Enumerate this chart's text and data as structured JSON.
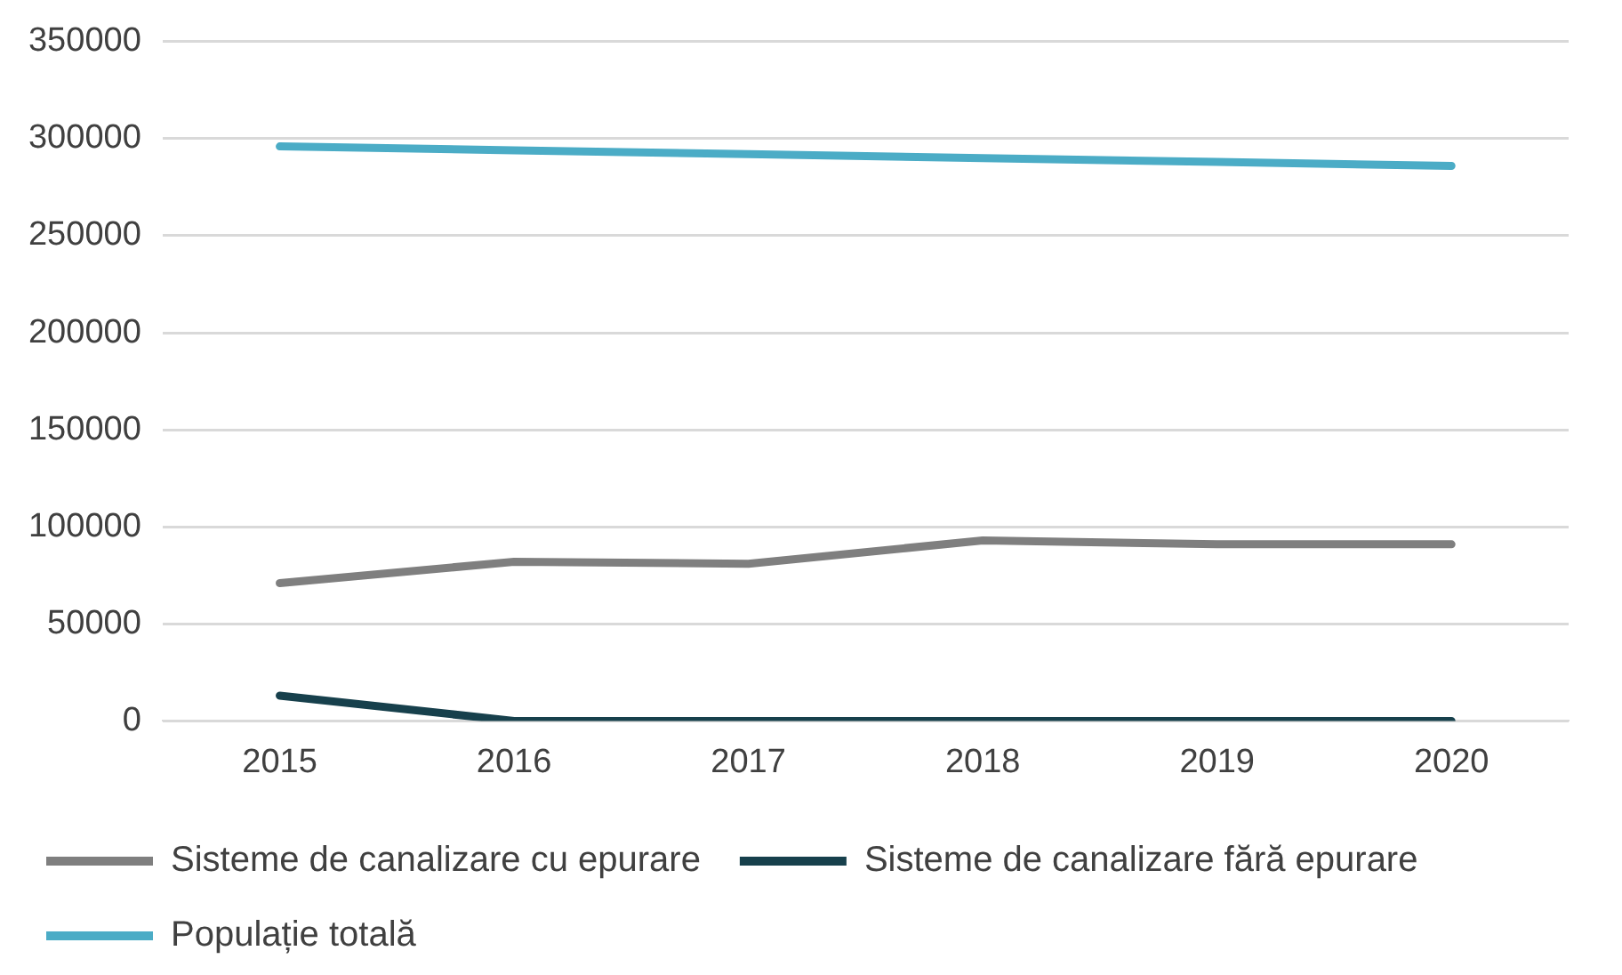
{
  "chart_data": {
    "type": "line",
    "categories": [
      "2015",
      "2016",
      "2017",
      "2018",
      "2019",
      "2020"
    ],
    "series": [
      {
        "name": "Sisteme de canalizare cu epurare",
        "color": "#7f7f7f",
        "values": [
          71000,
          82000,
          81000,
          93000,
          91000,
          91000
        ]
      },
      {
        "name": "Sisteme de canalizare fără epurare",
        "color": "#17404c",
        "values": [
          13000,
          0,
          0,
          0,
          0,
          0
        ]
      },
      {
        "name": "Populație totală",
        "color": "#4bacc6",
        "values": [
          296000,
          294000,
          292000,
          290000,
          288000,
          286000
        ]
      }
    ],
    "ylim": [
      0,
      350000
    ],
    "yticks": [
      0,
      50000,
      100000,
      150000,
      200000,
      250000,
      300000,
      350000
    ],
    "grid": "y",
    "legend": "bottom",
    "marker": "none",
    "line_style": "solid"
  }
}
